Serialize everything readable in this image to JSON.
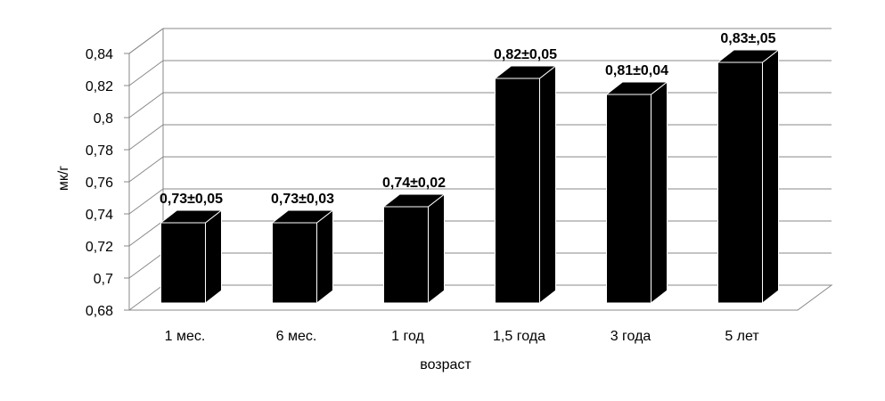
{
  "chart_data": {
    "type": "bar3d",
    "categories": [
      "1 мес.",
      "6 мес.",
      "1 год",
      "1,5 года",
      "3 года",
      "5 лет"
    ],
    "values": [
      0.73,
      0.73,
      0.74,
      0.82,
      0.81,
      0.83
    ],
    "value_labels": [
      "0,73±0,05",
      "0,73±0,03",
      "0,74±0,02",
      "0,82±0,05",
      "0,81±0,04",
      "0,83±,05"
    ],
    "color": "#000000",
    "x_label": "возраст",
    "y_label": "мк/г",
    "ylim": [
      0.68,
      0.84
    ],
    "yticks": [
      {
        "value": 0.68,
        "label": "0,68"
      },
      {
        "value": 0.7,
        "label": "0,7"
      },
      {
        "value": 0.72,
        "label": "0,72"
      },
      {
        "value": 0.74,
        "label": "0,74"
      },
      {
        "value": 0.76,
        "label": "0,76"
      },
      {
        "value": 0.78,
        "label": "0,78"
      },
      {
        "value": 0.8,
        "label": "0,8"
      },
      {
        "value": 0.82,
        "label": "0,82"
      },
      {
        "value": 0.84,
        "label": "0,84"
      }
    ],
    "grid": true
  }
}
